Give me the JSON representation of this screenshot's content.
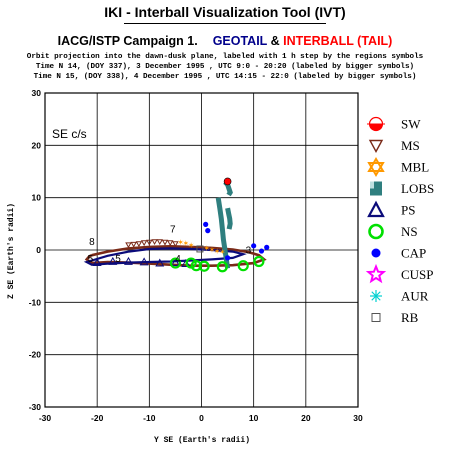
{
  "header": {
    "app_title": "IKI - Interball Visualization Tool (IVT)",
    "campaign": "IACG/ISTP Campaign 1.",
    "geotail": "GEOTAIL",
    "amp": "&",
    "interball": "INTERBALL (TAIL)",
    "line1": "Orbit projection into the dawn-dusk plane, labeled with 1 h step by the regions symbols",
    "line2": "Time N 14, (DOY 337), 3 December 1995 ,  UTC 9:0 - 20:20 (labeled by bigger symbols)",
    "line3": "Time N 15, (DOY 338), 4 December 1995 ,  UTC 14:15 - 22:0 (labeled by bigger symbols)"
  },
  "colors": {
    "geotail": "#00008b",
    "interball": "#ff0000",
    "orbit_brown": "#7a2a18",
    "orbit_navy": "#0b0b7a",
    "lobs": "#2f7f7f",
    "ns": "#00e000",
    "cap": "#0000ff",
    "cusp": "#ff00ff",
    "aur": "#00d0d0",
    "mbl": "#ff9900"
  },
  "chart_data": {
    "type": "scatter",
    "frame_label": "SE c/s",
    "xlabel": "Y SE (Earth's radii)",
    "ylabel": "Z SE (Earth's radii)",
    "xlim": [
      -30,
      30
    ],
    "ylim": [
      -30,
      30
    ],
    "xticks": [
      -30,
      -20,
      -10,
      0,
      10,
      20,
      30
    ],
    "yticks": [
      -30,
      -20,
      -10,
      0,
      10,
      20,
      30
    ],
    "grid": true,
    "legend_position": "right",
    "legend": [
      {
        "label": "SW",
        "icon": "sw-icon"
      },
      {
        "label": "MS",
        "icon": "ms-icon"
      },
      {
        "label": "MBL",
        "icon": "mbl-icon"
      },
      {
        "label": "LOBS",
        "icon": "lobs-icon"
      },
      {
        "label": "PS",
        "icon": "ps-icon"
      },
      {
        "label": "NS",
        "icon": "ns-icon"
      },
      {
        "label": "CAP",
        "icon": "cap-icon"
      },
      {
        "label": "CUSP",
        "icon": "cusp-icon"
      },
      {
        "label": "AUR",
        "icon": "aur-icon"
      },
      {
        "label": "RB",
        "icon": "rb-icon"
      }
    ],
    "hour_labels": [
      {
        "text": "8",
        "x": -21,
        "y": 1
      },
      {
        "text": "7",
        "x": -5.5,
        "y": 3.3
      },
      {
        "text": "5",
        "x": -21.3,
        "y": -2.3
      },
      {
        "text": "5",
        "x": -16,
        "y": -2.3
      },
      {
        "text": "4",
        "x": -4.5,
        "y": -2.3
      },
      {
        "text": "3",
        "x": 9,
        "y": -0.7
      }
    ],
    "series": [
      {
        "name": "outer ring",
        "points": [
          [
            -21,
            -1
          ],
          [
            -18,
            -0.3
          ],
          [
            -14,
            0.3
          ],
          [
            -10,
            0.6
          ],
          [
            -6,
            0.7
          ],
          [
            -2,
            0.6
          ],
          [
            2,
            0.4
          ],
          [
            6,
            0.1
          ],
          [
            9,
            -0.4
          ],
          [
            11,
            -1
          ],
          [
            12,
            -1.8
          ],
          [
            10,
            -2.5
          ],
          [
            6,
            -2.9
          ],
          [
            2,
            -3
          ],
          [
            -2,
            -3
          ],
          [
            -6,
            -2.8
          ],
          [
            -10,
            -2.6
          ],
          [
            -14,
            -2.4
          ],
          [
            -18,
            -2.3
          ],
          [
            -21,
            -2.5
          ],
          [
            -22,
            -1.8
          ],
          [
            -21.5,
            -1.2
          ],
          [
            -21,
            -1
          ]
        ]
      },
      {
        "name": "inner ring",
        "points": [
          [
            -21,
            -2
          ],
          [
            -18,
            -1.1
          ],
          [
            -14,
            -0.3
          ],
          [
            -10,
            0.2
          ],
          [
            -6,
            0.3
          ],
          [
            -2,
            0.2
          ],
          [
            2,
            0
          ],
          [
            6,
            -0.3
          ],
          [
            8,
            -0.8
          ],
          [
            6,
            -1.5
          ],
          [
            2,
            -1.8
          ],
          [
            -2,
            -2
          ],
          [
            -6,
            -2.2
          ],
          [
            -10,
            -2.3
          ],
          [
            -14,
            -2.4
          ],
          [
            -18,
            -2.6
          ],
          [
            -21,
            -2.8
          ],
          [
            -22,
            -2.3
          ],
          [
            -21,
            -2
          ]
        ]
      },
      {
        "name": "lobes strip",
        "points": [
          [
            3.2,
            10
          ],
          [
            3.5,
            8
          ],
          [
            3.8,
            6
          ],
          [
            4,
            4
          ],
          [
            4.2,
            2
          ],
          [
            4.5,
            0
          ],
          [
            4.8,
            -2
          ],
          [
            5,
            -3.5
          ]
        ]
      },
      {
        "name": "lobes upper",
        "points": [
          [
            4.5,
            13
          ],
          [
            5,
            12.5
          ],
          [
            5.5,
            11
          ],
          [
            5.2,
            10.5
          ]
        ]
      },
      {
        "name": "lobes lower",
        "points": [
          [
            5,
            8
          ],
          [
            5.2,
            7
          ],
          [
            5.4,
            6
          ],
          [
            5.5,
            5
          ],
          [
            5.3,
            4
          ]
        ]
      },
      {
        "name": "NS",
        "points": [
          [
            -5,
            -2.5
          ],
          [
            -2,
            -2.5
          ],
          [
            -1,
            -3
          ],
          [
            0.5,
            -3.1
          ],
          [
            4,
            -3.2
          ],
          [
            8,
            -3
          ],
          [
            11,
            -2.2
          ]
        ]
      },
      {
        "name": "CAP",
        "points": [
          [
            0.8,
            4.9
          ],
          [
            1.2,
            3.7
          ],
          [
            5,
            -1.5
          ],
          [
            10,
            0.8
          ],
          [
            12.5,
            0.5
          ],
          [
            11.5,
            -0.2
          ]
        ]
      },
      {
        "name": "MBL",
        "points": [
          [
            1,
            0.4
          ],
          [
            2,
            0.1
          ],
          [
            3,
            -0.2
          ],
          [
            4,
            -0.3
          ],
          [
            -2,
            1
          ],
          [
            -3,
            1.3
          ],
          [
            -4,
            1.5
          ]
        ]
      },
      {
        "name": "MS",
        "points": [
          [
            -5,
            1.2
          ],
          [
            -6,
            1.4
          ],
          [
            -7,
            1.5
          ],
          [
            -8,
            1.6
          ],
          [
            -9,
            1.6
          ],
          [
            -10,
            1.5
          ],
          [
            -11,
            1.4
          ],
          [
            -12,
            1.2
          ],
          [
            -13,
            1.1
          ],
          [
            -14,
            1
          ]
        ]
      },
      {
        "name": "SW",
        "points": [
          [
            5,
            13.1
          ]
        ]
      },
      {
        "name": "RB",
        "points": [
          [
            -0.3,
            0.2
          ]
        ]
      }
    ]
  }
}
